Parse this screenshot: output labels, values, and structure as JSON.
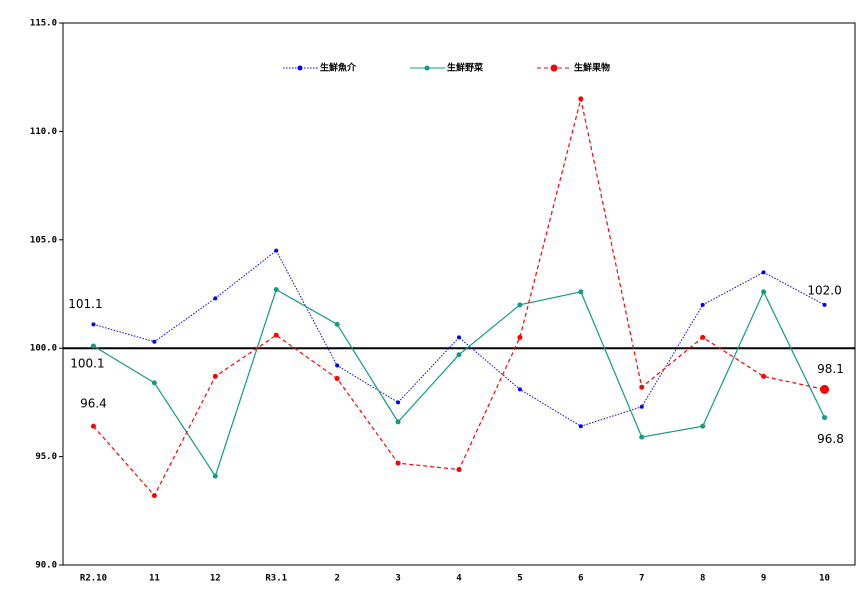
{
  "chart_data": {
    "type": "line",
    "categories": [
      "R2.10",
      "11",
      "12",
      "R3.1",
      "2",
      "3",
      "4",
      "5",
      "6",
      "7",
      "8",
      "9",
      "10"
    ],
    "series": [
      {
        "name": "生鮮魚介",
        "color": "#0000ff",
        "style": "dotted",
        "values": [
          101.1,
          100.3,
          102.3,
          104.5,
          99.2,
          97.5,
          100.5,
          98.1,
          96.4,
          97.3,
          102.0,
          103.5,
          102.0
        ],
        "value_labels": [
          "101.1",
          null,
          null,
          null,
          null,
          null,
          null,
          null,
          null,
          null,
          null,
          null,
          "102.0"
        ]
      },
      {
        "name": "生鮮野菜",
        "color": "#139b85",
        "style": "solid",
        "values": [
          100.1,
          98.4,
          94.1,
          102.7,
          101.1,
          96.6,
          99.7,
          102.0,
          102.6,
          95.9,
          96.4,
          102.6,
          96.8
        ],
        "value_labels": [
          "100.1",
          null,
          null,
          null,
          null,
          null,
          null,
          null,
          null,
          null,
          null,
          null,
          "96.8"
        ]
      },
      {
        "name": "生鮮果物",
        "color": "#ff0000",
        "style": "dashed",
        "values": [
          96.4,
          93.2,
          98.7,
          100.6,
          98.6,
          94.7,
          94.4,
          100.5,
          111.5,
          98.2,
          100.5,
          98.7,
          98.1
        ],
        "value_labels": [
          "96.4",
          null,
          null,
          null,
          null,
          null,
          null,
          null,
          null,
          null,
          null,
          null,
          "98.1"
        ]
      }
    ],
    "ylim": [
      90,
      115
    ],
    "yticks": [
      {
        "value": 90,
        "label": "90.0"
      },
      {
        "value": 95,
        "label": "95.0"
      },
      {
        "value": 100,
        "label": "100.0"
      },
      {
        "value": 105,
        "label": "105.0"
      },
      {
        "value": 110,
        "label": "110.0"
      },
      {
        "value": 115,
        "label": "115.0"
      }
    ],
    "reference_line": 100,
    "legend": "top"
  }
}
